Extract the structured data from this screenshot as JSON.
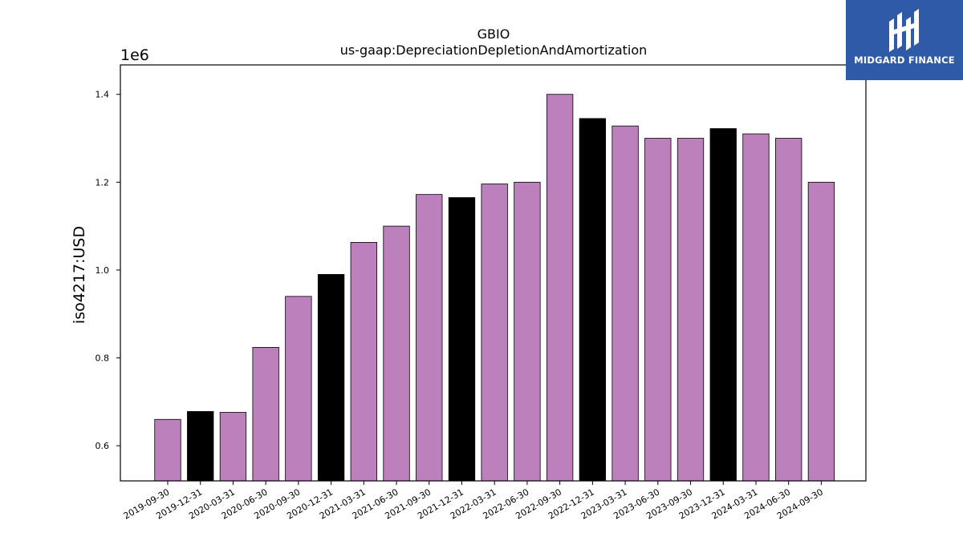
{
  "logo": {
    "text": "MIDGARD FINANCE",
    "background": "#2f5aa8"
  },
  "chart_data": {
    "type": "bar",
    "title": "GBIO",
    "subtitle": "us-gaap:DepreciationDepletionAndAmortization",
    "ylabel": "iso4217:USD",
    "y_offset_label": "1e6",
    "ylim": [
      520000,
      1467000
    ],
    "yticks": [
      600000,
      800000,
      1000000,
      1200000,
      1400000
    ],
    "ytick_labels": [
      "0.6",
      "0.8",
      "1.0",
      "1.2",
      "1.4"
    ],
    "grid": false,
    "colors": {
      "quarter": "#bc80bd",
      "year_end": "#000000"
    },
    "categories": [
      "2019-09-30",
      "2019-12-31",
      "2020-03-31",
      "2020-06-30",
      "2020-09-30",
      "2020-12-31",
      "2021-03-31",
      "2021-06-30",
      "2021-09-30",
      "2021-12-31",
      "2022-03-31",
      "2022-06-30",
      "2022-09-30",
      "2022-12-31",
      "2023-03-31",
      "2023-06-30",
      "2023-09-30",
      "2023-12-31",
      "2024-03-31",
      "2024-06-30",
      "2024-09-30"
    ],
    "values": [
      660000,
      678000,
      676000,
      824000,
      940000,
      990000,
      1063000,
      1100000,
      1172000,
      1165000,
      1196000,
      1200000,
      1400000,
      1345000,
      1328000,
      1300000,
      1300000,
      1322000,
      1310000,
      1300000,
      1200000
    ],
    "year_end": [
      false,
      true,
      false,
      false,
      false,
      true,
      false,
      false,
      false,
      true,
      false,
      false,
      false,
      true,
      false,
      false,
      false,
      true,
      false,
      false,
      false
    ]
  }
}
